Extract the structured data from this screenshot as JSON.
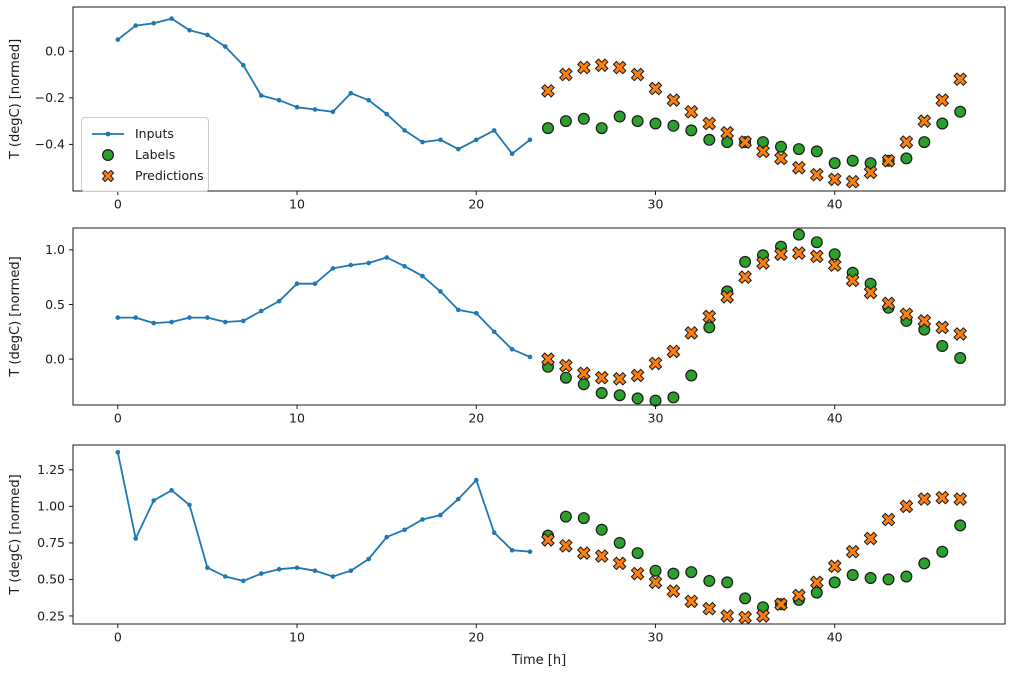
{
  "figure": {
    "background": "#ffffff"
  },
  "legend": {
    "position": "upper left of subplot 1",
    "items": [
      {
        "label": "Inputs",
        "type": "line-dot",
        "color": "#1f77b4"
      },
      {
        "label": "Labels",
        "type": "circle",
        "color": "#2ca02c"
      },
      {
        "label": "Predictions",
        "type": "x-cross",
        "color": "#ff7f0e"
      }
    ]
  },
  "chart_data": [
    {
      "type": "line",
      "ylabel": "T (degC) [normed]",
      "ylim": [
        -0.6,
        0.19
      ],
      "xlim": [
        -2.5,
        49.5
      ],
      "grid": false,
      "yticks": [
        {
          "v": 0.0,
          "label": "0.0"
        },
        {
          "v": -0.2,
          "label": "−0.2"
        },
        {
          "v": -0.4,
          "label": "−0.4"
        }
      ],
      "xticks": [
        {
          "v": 0,
          "label": "0"
        },
        {
          "v": 10,
          "label": "10"
        },
        {
          "v": 20,
          "label": "20"
        },
        {
          "v": 30,
          "label": "30"
        },
        {
          "v": 40,
          "label": "40"
        }
      ],
      "series": {
        "inputs": {
          "name": "Inputs",
          "color": "#1f77b4",
          "x_start": 0,
          "values": [
            0.05,
            0.11,
            0.12,
            0.14,
            0.09,
            0.07,
            0.02,
            -0.06,
            -0.19,
            -0.21,
            -0.24,
            -0.25,
            -0.26,
            -0.18,
            -0.21,
            -0.27,
            -0.34,
            -0.39,
            -0.38,
            -0.42,
            -0.38,
            -0.34,
            -0.44,
            -0.38
          ]
        },
        "labels": {
          "name": "Labels",
          "color": "#2ca02c",
          "x_start": 24,
          "values": [
            -0.33,
            -0.3,
            -0.29,
            -0.33,
            -0.28,
            -0.3,
            -0.31,
            -0.32,
            -0.34,
            -0.38,
            -0.39,
            -0.39,
            -0.39,
            -0.41,
            -0.42,
            -0.43,
            -0.48,
            -0.47,
            -0.48,
            -0.47,
            -0.46,
            -0.39,
            -0.31,
            -0.26
          ]
        },
        "predictions": {
          "name": "Predictions",
          "color": "#ff7f0e",
          "x_start": 24,
          "values": [
            -0.17,
            -0.1,
            -0.07,
            -0.06,
            -0.07,
            -0.1,
            -0.16,
            -0.21,
            -0.26,
            -0.31,
            -0.35,
            -0.39,
            -0.43,
            -0.46,
            -0.5,
            -0.53,
            -0.55,
            -0.56,
            -0.52,
            -0.47,
            -0.39,
            -0.3,
            -0.21,
            -0.12
          ]
        }
      }
    },
    {
      "type": "line",
      "ylabel": "T (degC) [normed]",
      "ylim": [
        -0.42,
        1.2
      ],
      "xlim": [
        -2.5,
        49.5
      ],
      "grid": false,
      "yticks": [
        {
          "v": 1.0,
          "label": "1.0"
        },
        {
          "v": 0.5,
          "label": "0.5"
        },
        {
          "v": 0.0,
          "label": "0.0"
        }
      ],
      "xticks": [
        {
          "v": 0,
          "label": "0"
        },
        {
          "v": 10,
          "label": "10"
        },
        {
          "v": 20,
          "label": "20"
        },
        {
          "v": 30,
          "label": "30"
        },
        {
          "v": 40,
          "label": "40"
        }
      ],
      "series": {
        "inputs": {
          "name": "Inputs",
          "color": "#1f77b4",
          "x_start": 0,
          "values": [
            0.38,
            0.38,
            0.33,
            0.34,
            0.38,
            0.38,
            0.34,
            0.35,
            0.44,
            0.53,
            0.69,
            0.69,
            0.83,
            0.86,
            0.88,
            0.93,
            0.85,
            0.76,
            0.62,
            0.45,
            0.42,
            0.25,
            0.09,
            0.02
          ]
        },
        "labels": {
          "name": "Labels",
          "color": "#2ca02c",
          "x_start": 24,
          "values": [
            -0.07,
            -0.17,
            -0.23,
            -0.31,
            -0.33,
            -0.36,
            -0.38,
            -0.35,
            -0.15,
            0.29,
            0.62,
            0.89,
            0.95,
            1.03,
            1.14,
            1.07,
            0.96,
            0.79,
            0.69,
            0.47,
            0.35,
            0.27,
            0.12,
            0.01
          ]
        },
        "predictions": {
          "name": "Predictions",
          "color": "#ff7f0e",
          "x_start": 24,
          "values": [
            0.0,
            -0.06,
            -0.13,
            -0.17,
            -0.18,
            -0.15,
            -0.04,
            0.07,
            0.24,
            0.39,
            0.57,
            0.75,
            0.88,
            0.96,
            0.97,
            0.94,
            0.86,
            0.72,
            0.61,
            0.51,
            0.41,
            0.35,
            0.29,
            0.23
          ]
        }
      }
    },
    {
      "type": "line",
      "ylabel": "T (degC) [normed]",
      "xlabel": "Time [h]",
      "ylim": [
        0.195,
        1.42
      ],
      "xlim": [
        -2.5,
        49.5
      ],
      "grid": false,
      "yticks": [
        {
          "v": 1.25,
          "label": "1.25"
        },
        {
          "v": 1.0,
          "label": "1.00"
        },
        {
          "v": 0.75,
          "label": "0.75"
        },
        {
          "v": 0.5,
          "label": "0.50"
        },
        {
          "v": 0.25,
          "label": "0.25"
        }
      ],
      "xticks": [
        {
          "v": 0,
          "label": "0"
        },
        {
          "v": 10,
          "label": "10"
        },
        {
          "v": 20,
          "label": "20"
        },
        {
          "v": 30,
          "label": "30"
        },
        {
          "v": 40,
          "label": "40"
        }
      ],
      "series": {
        "inputs": {
          "name": "Inputs",
          "color": "#1f77b4",
          "x_start": 0,
          "values": [
            1.37,
            0.78,
            1.04,
            1.11,
            1.01,
            0.58,
            0.52,
            0.49,
            0.54,
            0.57,
            0.58,
            0.56,
            0.52,
            0.56,
            0.64,
            0.79,
            0.84,
            0.91,
            0.94,
            1.05,
            1.18,
            0.82,
            0.7,
            0.69
          ]
        },
        "labels": {
          "name": "Labels",
          "color": "#2ca02c",
          "x_start": 24,
          "values": [
            0.8,
            0.93,
            0.92,
            0.84,
            0.75,
            0.68,
            0.56,
            0.54,
            0.55,
            0.49,
            0.48,
            0.37,
            0.31,
            0.33,
            0.36,
            0.41,
            0.48,
            0.53,
            0.51,
            0.5,
            0.52,
            0.61,
            0.69,
            0.87
          ]
        },
        "predictions": {
          "name": "Predictions",
          "color": "#ff7f0e",
          "x_start": 24,
          "values": [
            0.77,
            0.73,
            0.68,
            0.66,
            0.61,
            0.54,
            0.48,
            0.42,
            0.35,
            0.3,
            0.25,
            0.24,
            0.25,
            0.33,
            0.39,
            0.48,
            0.59,
            0.69,
            0.78,
            0.91,
            1.0,
            1.05,
            1.06,
            1.05
          ]
        }
      }
    }
  ]
}
